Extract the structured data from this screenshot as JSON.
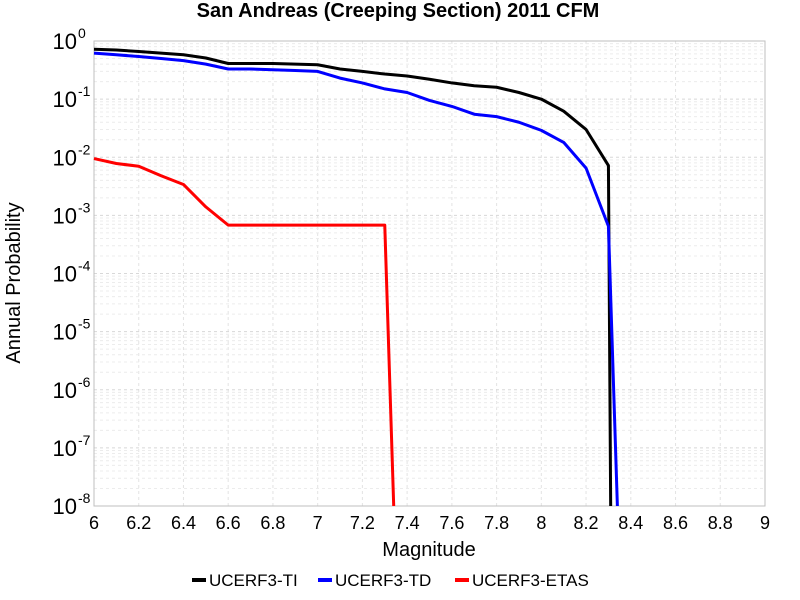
{
  "chart_data": {
    "type": "line",
    "title": "San Andreas (Creeping Section) 2011 CFM",
    "xlabel": "Magnitude",
    "ylabel": "Annual Probability",
    "xlim": [
      6,
      9
    ],
    "ylim": [
      1e-08,
      1
    ],
    "yscale": "log",
    "grid": true,
    "legend_position": "bottom",
    "x_ticks": [
      "6",
      "6.2",
      "6.4",
      "6.6",
      "6.8",
      "7",
      "7.2",
      "7.4",
      "7.6",
      "7.8",
      "8",
      "8.2",
      "8.4",
      "8.6",
      "8.8",
      "9"
    ],
    "y_ticks": [
      {
        "base": "10",
        "exp": "0",
        "value": 1
      },
      {
        "base": "10",
        "exp": "-1",
        "value": 0.1
      },
      {
        "base": "10",
        "exp": "-2",
        "value": 0.01
      },
      {
        "base": "10",
        "exp": "-3",
        "value": 0.001
      },
      {
        "base": "10",
        "exp": "-4",
        "value": 0.0001
      },
      {
        "base": "10",
        "exp": "-5",
        "value": 1e-05
      },
      {
        "base": "10",
        "exp": "-6",
        "value": 1e-06
      },
      {
        "base": "10",
        "exp": "-7",
        "value": 1e-07
      },
      {
        "base": "10",
        "exp": "-8",
        "value": 1e-08
      }
    ],
    "series": [
      {
        "name": "UCERF3-TI",
        "color": "#000000",
        "points": [
          [
            6.0,
            0.72
          ],
          [
            6.1,
            0.7
          ],
          [
            6.2,
            0.66
          ],
          [
            6.3,
            0.62
          ],
          [
            6.4,
            0.58
          ],
          [
            6.5,
            0.51
          ],
          [
            6.6,
            0.41
          ],
          [
            6.7,
            0.41
          ],
          [
            6.8,
            0.41
          ],
          [
            6.9,
            0.4
          ],
          [
            7.0,
            0.39
          ],
          [
            7.1,
            0.33
          ],
          [
            7.2,
            0.3
          ],
          [
            7.3,
            0.27
          ],
          [
            7.4,
            0.25
          ],
          [
            7.5,
            0.22
          ],
          [
            7.6,
            0.19
          ],
          [
            7.7,
            0.17
          ],
          [
            7.8,
            0.16
          ],
          [
            7.9,
            0.13
          ],
          [
            8.0,
            0.1
          ],
          [
            8.1,
            0.062
          ],
          [
            8.2,
            0.03
          ],
          [
            8.3,
            0.0072
          ],
          [
            8.31,
            1e-08
          ]
        ]
      },
      {
        "name": "UCERF3-TD",
        "color": "#0000ff",
        "points": [
          [
            6.0,
            0.62
          ],
          [
            6.1,
            0.58
          ],
          [
            6.2,
            0.54
          ],
          [
            6.3,
            0.5
          ],
          [
            6.4,
            0.46
          ],
          [
            6.5,
            0.4
          ],
          [
            6.6,
            0.33
          ],
          [
            6.7,
            0.33
          ],
          [
            6.8,
            0.32
          ],
          [
            6.9,
            0.31
          ],
          [
            7.0,
            0.3
          ],
          [
            7.1,
            0.23
          ],
          [
            7.2,
            0.19
          ],
          [
            7.3,
            0.15
          ],
          [
            7.4,
            0.13
          ],
          [
            7.5,
            0.095
          ],
          [
            7.6,
            0.075
          ],
          [
            7.7,
            0.055
          ],
          [
            7.8,
            0.05
          ],
          [
            7.9,
            0.04
          ],
          [
            8.0,
            0.029
          ],
          [
            8.1,
            0.018
          ],
          [
            8.2,
            0.0065
          ],
          [
            8.3,
            0.00065
          ],
          [
            8.34,
            1e-08
          ]
        ]
      },
      {
        "name": "UCERF3-ETAS",
        "color": "#ff0000",
        "points": [
          [
            6.0,
            0.0095
          ],
          [
            6.1,
            0.0078
          ],
          [
            6.2,
            0.007
          ],
          [
            6.3,
            0.0048
          ],
          [
            6.4,
            0.0034
          ],
          [
            6.5,
            0.0014
          ],
          [
            6.6,
            0.00068
          ],
          [
            6.8,
            0.00068
          ],
          [
            7.0,
            0.00068
          ],
          [
            7.2,
            0.00068
          ],
          [
            7.3,
            0.00068
          ],
          [
            7.34,
            1e-08
          ]
        ]
      }
    ]
  }
}
